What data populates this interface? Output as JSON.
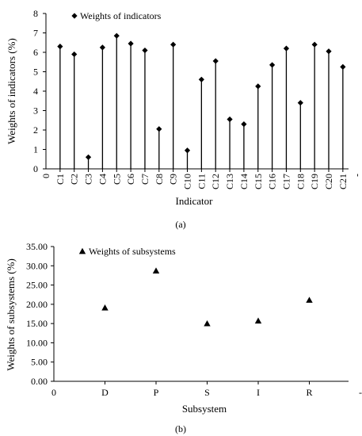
{
  "chart_data": [
    {
      "type": "scatter",
      "style": "stem",
      "marker": "diamond",
      "title": "",
      "legend": {
        "label": "Weights of indicators",
        "position": "top-left"
      },
      "xlabel": "Indicator",
      "ylabel": "Weights of indicators (%)",
      "ylim": [
        0,
        8
      ],
      "yticks": [
        "0",
        "1",
        "2",
        "3",
        "4",
        "5",
        "6",
        "7",
        "8"
      ],
      "x_start_label": "0",
      "x_end_label": "-",
      "categories": [
        "C1",
        "C2",
        "C3",
        "C4",
        "C5",
        "C6",
        "C7",
        "C8",
        "C9",
        "C10",
        "C11",
        "C12",
        "C13",
        "C14",
        "C15",
        "C16",
        "C17",
        "C18",
        "C19",
        "C20",
        "C21"
      ],
      "values": [
        6.3,
        5.9,
        0.6,
        6.25,
        6.85,
        6.45,
        6.1,
        2.05,
        6.4,
        0.95,
        4.6,
        5.55,
        2.55,
        2.3,
        4.25,
        5.35,
        6.2,
        3.4,
        6.4,
        6.05,
        5.25
      ],
      "grid": false,
      "panel_label": "(a)"
    },
    {
      "type": "scatter",
      "marker": "triangle",
      "title": "",
      "legend": {
        "label": "Weights of subsystems",
        "position": "top-left"
      },
      "xlabel": "Subsystem",
      "ylabel": "Weights of subsystems (%)",
      "ylim": [
        0,
        35
      ],
      "yticks": [
        "0.00",
        "5.00",
        "10.00",
        "15.00",
        "20.00",
        "25.00",
        "30.00",
        "35.00"
      ],
      "x_start_label": "0",
      "x_end_label": "-",
      "categories": [
        "D",
        "P",
        "S",
        "I",
        "R"
      ],
      "values": [
        19.1,
        28.7,
        15.0,
        15.7,
        21.1
      ],
      "grid": false,
      "panel_label": "(b)"
    }
  ]
}
